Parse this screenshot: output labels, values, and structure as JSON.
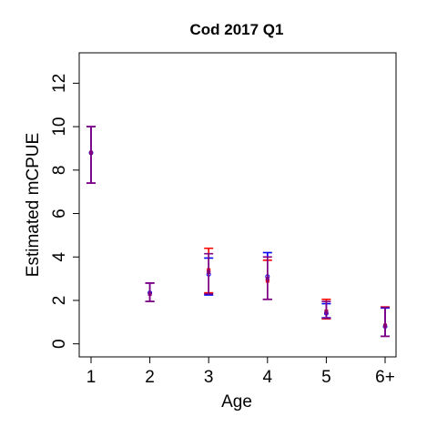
{
  "chart_data": {
    "type": "scatter",
    "title": "Cod 2017 Q1",
    "xlabel": "Age",
    "ylabel": "Estimated mCPUE",
    "categories": [
      "1",
      "2",
      "3",
      "4",
      "5",
      "6+"
    ],
    "ylim": [
      -0.6,
      13.4
    ],
    "yticks": [
      "0",
      "2",
      "4",
      "6",
      "8",
      "10",
      "12"
    ],
    "grid": false,
    "legend": "none",
    "series": [
      {
        "color": "#ff0000",
        "point_style": "filled-square",
        "values": [
          8.8,
          2.3,
          3.4,
          2.9,
          1.5,
          0.85
        ],
        "lower": [
          7.4,
          1.95,
          2.35,
          2.05,
          1.15,
          0.35
        ],
        "upper": [
          10.0,
          2.8,
          4.4,
          3.85,
          2.05,
          1.7
        ]
      },
      {
        "color": "#0000ff",
        "point_style": "open-circle",
        "values": [
          8.8,
          2.35,
          3.2,
          3.1,
          1.4,
          0.8
        ],
        "lower": [
          7.4,
          1.95,
          2.25,
          2.05,
          1.2,
          0.35
        ],
        "upper": [
          10.0,
          2.8,
          3.95,
          4.2,
          1.85,
          1.65
        ]
      },
      {
        "color": "#800080",
        "point_style": "filled-square",
        "values": [
          8.8,
          2.3,
          3.3,
          3.0,
          1.45,
          0.82
        ],
        "lower": [
          7.4,
          1.95,
          2.3,
          2.05,
          1.18,
          0.35
        ],
        "upper": [
          10.0,
          2.8,
          4.15,
          4.0,
          1.95,
          1.68
        ]
      }
    ]
  }
}
